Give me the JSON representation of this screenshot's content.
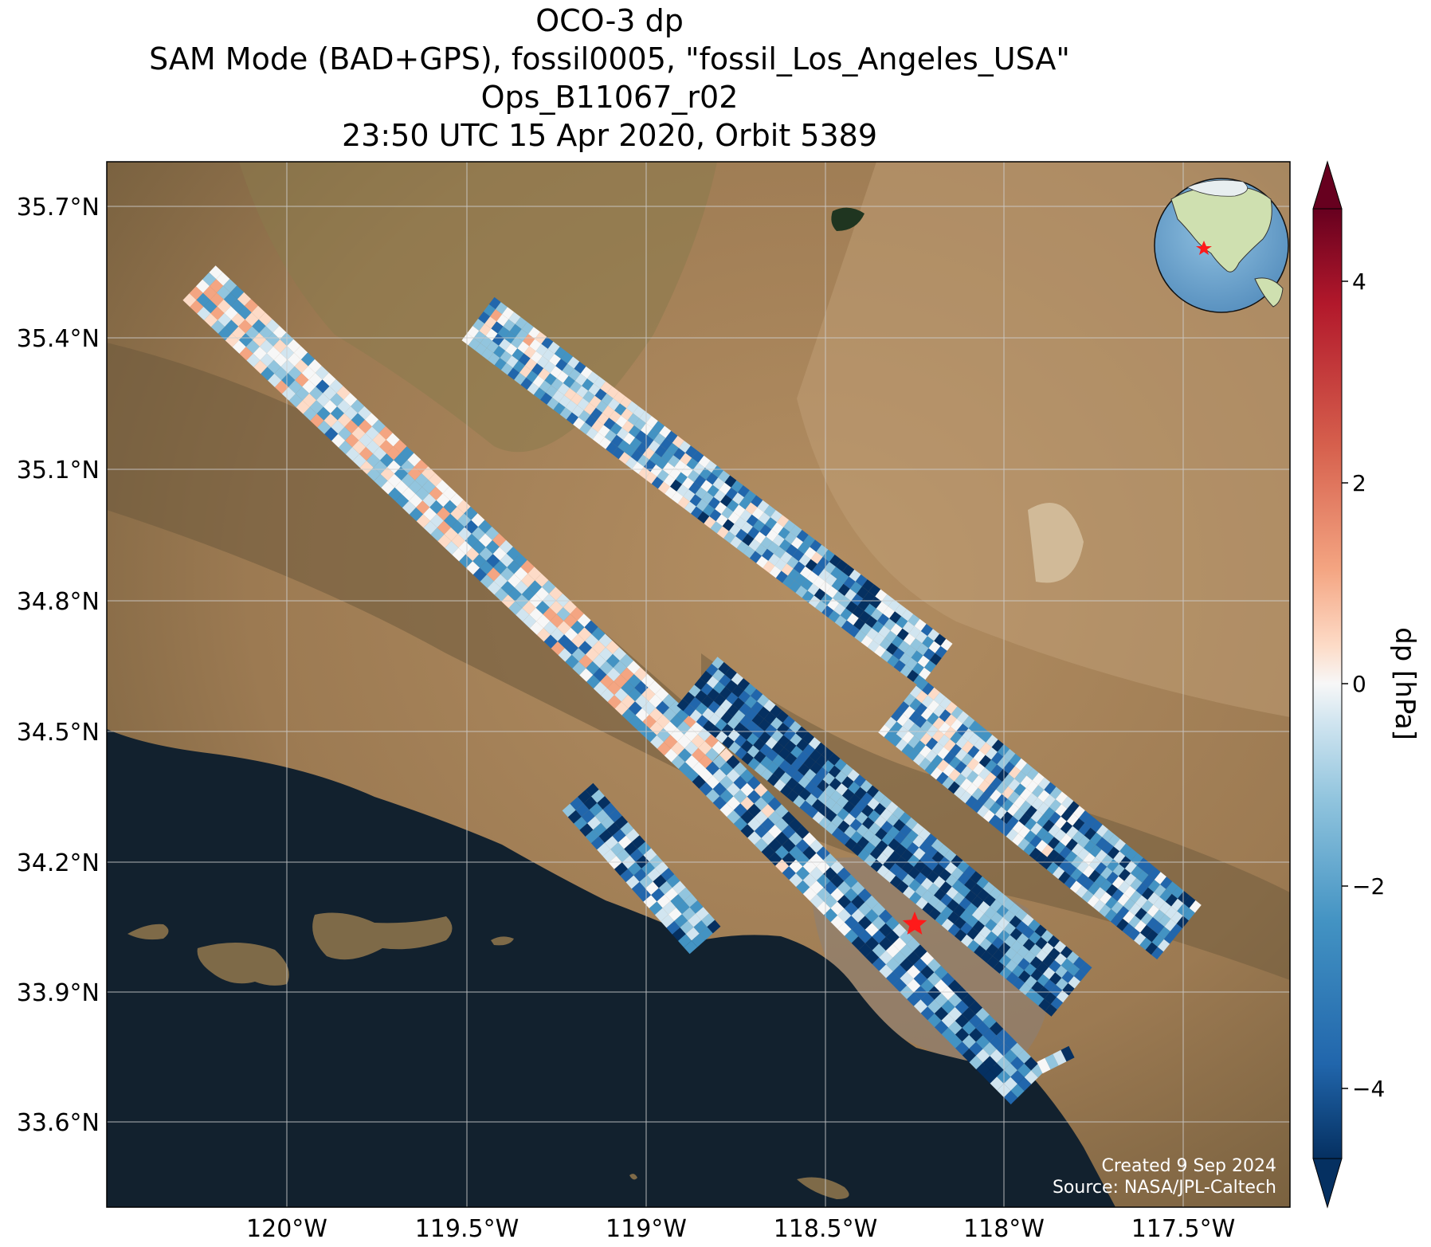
{
  "title": {
    "line1": "OCO-3 dp",
    "line2": "SAM Mode (BAD+GPS), fossil0005, \"fossil_Los_Angeles_USA\"",
    "line3": "Ops_B11067_r02",
    "line4": "23:50 UTC 15 Apr 2020, Orbit 5389"
  },
  "map": {
    "lat_ticks": [
      "35.7°N",
      "35.4°N",
      "35.1°N",
      "34.8°N",
      "34.5°N",
      "34.2°N",
      "33.9°N",
      "33.6°N"
    ],
    "lon_ticks": [
      "120°W",
      "119.5°W",
      "119°W",
      "118.5°W",
      "118°W",
      "117.5°W"
    ],
    "target_marker": "red-star",
    "inset": "globe-locator",
    "credit_line1": "Created 9 Sep 2024",
    "credit_line2": "Source: NASA/JPL-Caltech",
    "colors": {
      "ocean": "#12212e",
      "land": "#9c7a52",
      "grid": "#cfcfcf",
      "marker": "#ff1a1a"
    }
  },
  "colorbar": {
    "label": "dp [hPa]",
    "ticks": [
      "4",
      "2",
      "0",
      "−2",
      "−4"
    ],
    "colormap": "RdBu_r",
    "extend": "both"
  }
}
